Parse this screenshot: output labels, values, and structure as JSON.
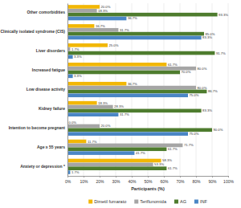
{
  "chart_data": {
    "type": "bar",
    "orientation": "horizontal",
    "grid": true,
    "data_labels": true,
    "legend": "bottom",
    "x_label": "Participants (%)",
    "categories": [
      "Other comorbidities",
      "Clinically isolated syndrome (CIS)",
      "Liver disorders",
      "Increased fatigue",
      "Low disease activity",
      "Kidney failure",
      "Intention to become pregnant",
      "Age ≥ 55 years",
      "Anxiety or depression *"
    ],
    "xlim": [
      0,
      100
    ],
    "xticks": [
      {
        "value": 0,
        "label": "0%"
      },
      {
        "value": 10,
        "label": "10%"
      },
      {
        "value": 20,
        "label": "20%"
      },
      {
        "value": 30,
        "label": "30%"
      },
      {
        "value": 40,
        "label": "40%"
      },
      {
        "value": 50,
        "label": "50%"
      },
      {
        "value": 60,
        "label": "60%"
      },
      {
        "value": 70,
        "label": "70%"
      },
      {
        "value": 80,
        "label": "80%"
      },
      {
        "value": 90,
        "label": "90%"
      },
      {
        "value": 100,
        "label": "100%"
      }
    ],
    "series": [
      {
        "name": "Dimetil fumarato",
        "color": "#f2b705",
        "values": [
          20.0,
          16.7,
          25.0,
          61.7,
          36.7,
          18.3,
          0.0,
          11.7,
          58.3
        ],
        "value_labels": [
          "20.0%",
          "16.7%",
          "25.0%",
          "61.7%",
          "36.7%",
          "18.3%",
          "0.0%",
          "11.7%",
          "58.3%"
        ]
      },
      {
        "name": "Teriflunomida",
        "color": "#a5a5a5",
        "values": [
          18.3,
          31.7,
          1.7,
          80.0,
          80.0,
          28.3,
          20.0,
          71.7,
          53.3
        ],
        "value_labels": [
          "18.3%",
          "31.7%",
          "1.7%",
          "80.0%",
          "80.0%",
          "28.3%",
          "20.0%",
          "71.7%",
          "53.3%"
        ]
      },
      {
        "name": "AG",
        "color": "#4e7c2e",
        "values": [
          93.3,
          85.0,
          91.7,
          70.0,
          86.7,
          83.3,
          90.0,
          61.7,
          61.7
        ],
        "value_labels": [
          "93.3%",
          "85.0%",
          "91.7%",
          "70.0%",
          "86.7%",
          "83.3%",
          "90.0%",
          "61.7%",
          "61.7%"
        ]
      },
      {
        "name": "INF",
        "color": "#4a86c5",
        "values": [
          36.7,
          83.3,
          3.3,
          3.3,
          75.0,
          31.7,
          75.0,
          41.7,
          1.7
        ],
        "value_labels": [
          "36.7%",
          "83.3%",
          "3.3%",
          "3.3%",
          "75.0%",
          "31.7%",
          "75.0%",
          "41.7%",
          "1.7%"
        ]
      }
    ]
  }
}
